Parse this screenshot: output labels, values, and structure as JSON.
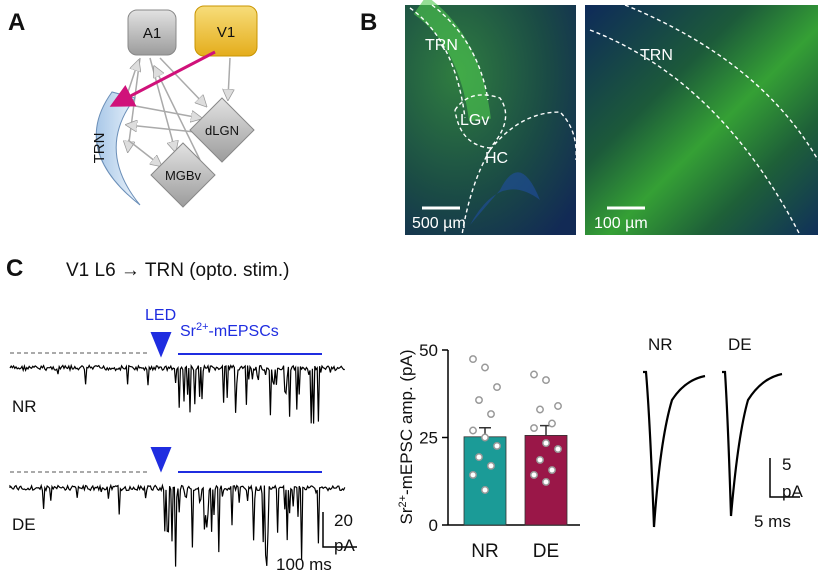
{
  "panels": {
    "a": "A",
    "b": "B",
    "c": "C"
  },
  "diagram": {
    "a1": "A1",
    "v1": "V1",
    "trn": "TRN",
    "dlgn": "dLGN",
    "mgbv": "MGBv"
  },
  "images": {
    "left": {
      "trn": "TRN",
      "lgv": "LGv",
      "hc": "HC",
      "scale": "500 µm"
    },
    "right": {
      "trn": "TRN",
      "scale": "100 µm"
    }
  },
  "c_title": "V1 L6 → TRN (opto. stim.)",
  "traces": {
    "led": "LED",
    "window": [
      "Sr",
      "2+",
      "-mEPSCs"
    ],
    "rows": [
      "NR",
      "DE"
    ],
    "scale": {
      "y": "20",
      "unit": "pA",
      "x": "100 ms"
    }
  },
  "chart_data": {
    "type": "bar",
    "ylabel": [
      "Sr",
      "2+",
      "-mEPSC amp. (pA)"
    ],
    "categories": [
      "NR",
      "DE"
    ],
    "values": [
      25.2,
      25.6
    ],
    "errors": [
      2.6,
      2.8
    ],
    "colors": [
      "#1b9b97",
      "#9a1748"
    ],
    "points": [
      [
        47.4,
        45,
        39.4,
        35.7,
        31.7,
        27,
        25,
        22.6,
        19.4,
        16.9,
        14.3,
        10
      ],
      [
        43,
        41.4,
        34,
        33,
        29,
        27.7,
        23.4,
        21.7,
        18.6,
        15.7,
        14.3,
        12.3
      ]
    ],
    "ylim": [
      0,
      50
    ],
    "yticks": [
      0,
      25,
      50
    ]
  },
  "averages": {
    "labels": [
      "NR",
      "DE"
    ],
    "scale": {
      "y": "5",
      "unit": "pA",
      "x": "5 ms"
    }
  }
}
